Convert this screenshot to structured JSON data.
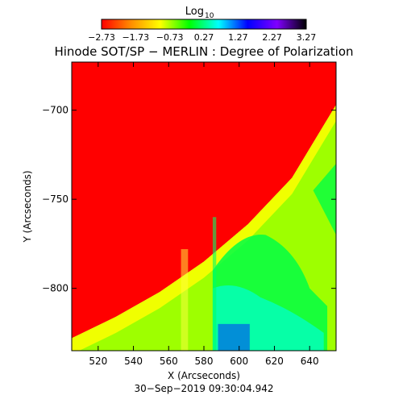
{
  "chart_data": {
    "type": "heatmap",
    "title": "Hinode SOT/SP − MERLIN : Degree of Polarization",
    "xlabel": "X (Arcseconds)",
    "ylabel": "Y (Arcseconds)",
    "xlim": [
      505,
      655
    ],
    "ylim": [
      -835,
      -673
    ],
    "x_ticks": [
      520,
      540,
      560,
      580,
      600,
      620,
      640
    ],
    "y_ticks": [
      -700,
      -750,
      -800
    ],
    "x_tick_labels": [
      "520",
      "540",
      "560",
      "580",
      "600",
      "620",
      "640"
    ],
    "y_tick_labels": [
      "−700",
      "−750",
      "−800"
    ],
    "colorbar": {
      "label_main": "Log",
      "label_sub": "10",
      "range": [
        -2.73,
        3.27
      ],
      "tick_values": [
        -2.73,
        -1.73,
        -0.73,
        0.27,
        1.27,
        2.27,
        3.27
      ],
      "tick_labels": [
        "−2.73",
        "−1.73",
        "−0.73",
        "0.27",
        "1.27",
        "2.27",
        "3.27"
      ],
      "colors": [
        "#ff0000",
        "#ff8c00",
        "#ffff00",
        "#00ff00",
        "#00ffff",
        "#0000ff",
        "#8000ff",
        "#000000"
      ]
    },
    "limb_boundary": [
      {
        "x": 505,
        "y": -828
      },
      {
        "x": 530,
        "y": -816
      },
      {
        "x": 555,
        "y": -802
      },
      {
        "x": 580,
        "y": -785
      },
      {
        "x": 605,
        "y": -764
      },
      {
        "x": 630,
        "y": -738
      },
      {
        "x": 655,
        "y": -697
      }
    ],
    "regions": {
      "above_limb": {
        "log10_value": -2.73,
        "color": "#ff0000"
      },
      "limb_band": {
        "log10_value": -1.5,
        "color": "#f0ff00"
      },
      "disk": {
        "log10_value": -0.6,
        "color": "#9eff00"
      },
      "plage": {
        "log10_value": 0.27,
        "color": "#00ff44"
      },
      "sunspot_region": {
        "log10_value": 1.0,
        "color": "#00ffcc"
      }
    },
    "timestamp": "30−Sep−2019 09:30:04.942"
  },
  "theme": {
    "axis_color": "#000000",
    "background": "#ffffff"
  }
}
